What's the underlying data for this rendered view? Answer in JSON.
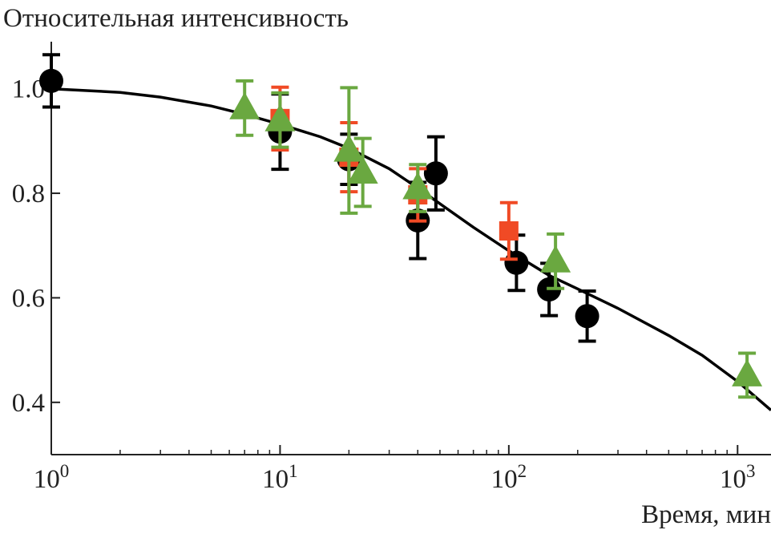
{
  "chart_data": {
    "type": "scatter",
    "ylabel": "Относительная интенсивность",
    "xlabel": "Время, мин",
    "x_scale": "log",
    "xlim": [
      1,
      1400
    ],
    "ylim": [
      0.3,
      1.09
    ],
    "y_ticks": [
      {
        "value": 0.4,
        "label": "0.4"
      },
      {
        "value": 0.6,
        "label": "0.6"
      },
      {
        "value": 0.8,
        "label": "0.8"
      },
      {
        "value": 1.0,
        "label": "1.0"
      }
    ],
    "x_major_ticks": [
      {
        "value": 1,
        "base": "10",
        "exp": "0"
      },
      {
        "value": 10,
        "base": "10",
        "exp": "1"
      },
      {
        "value": 100,
        "base": "10",
        "exp": "2"
      },
      {
        "value": 1000,
        "base": "10",
        "exp": "3"
      }
    ],
    "grid": false,
    "series": [
      {
        "marker": "circle",
        "color": "#000000",
        "points": [
          {
            "x": 1,
            "y": 1.015,
            "err": 0.05
          },
          {
            "x": 10,
            "y": 0.918,
            "err": 0.072
          },
          {
            "x": 20,
            "y": 0.865,
            "err": 0.048
          },
          {
            "x": 40,
            "y": 0.748,
            "err": 0.073
          },
          {
            "x": 48,
            "y": 0.838,
            "err": 0.07
          },
          {
            "x": 108,
            "y": 0.667,
            "err": 0.053
          },
          {
            "x": 150,
            "y": 0.616,
            "err": 0.05
          },
          {
            "x": 220,
            "y": 0.565,
            "err": 0.048
          }
        ]
      },
      {
        "marker": "square",
        "color": "#f04a25",
        "points": [
          {
            "x": 10,
            "y": 0.943,
            "err": 0.06
          },
          {
            "x": 20,
            "y": 0.869,
            "err": 0.066
          },
          {
            "x": 40,
            "y": 0.797,
            "err": 0.05
          },
          {
            "x": 100,
            "y": 0.728,
            "err": 0.054
          }
        ]
      },
      {
        "marker": "triangle",
        "color": "#6aa840",
        "points": [
          {
            "x": 7,
            "y": 0.963,
            "err": 0.052
          },
          {
            "x": 10,
            "y": 0.94,
            "err": 0.052
          },
          {
            "x": 20,
            "y": 0.882,
            "err": 0.12
          },
          {
            "x": 23,
            "y": 0.84,
            "err": 0.065
          },
          {
            "x": 40,
            "y": 0.81,
            "err": 0.045
          },
          {
            "x": 160,
            "y": 0.67,
            "err": 0.052
          },
          {
            "x": 1100,
            "y": 0.452,
            "err": 0.042
          }
        ]
      }
    ],
    "fit_curve": {
      "type": "line",
      "color": "#000000",
      "points": [
        {
          "x": 1,
          "y": 1.0
        },
        {
          "x": 2,
          "y": 0.993
        },
        {
          "x": 3,
          "y": 0.984
        },
        {
          "x": 5,
          "y": 0.967
        },
        {
          "x": 7,
          "y": 0.951
        },
        {
          "x": 10,
          "y": 0.932
        },
        {
          "x": 15,
          "y": 0.908
        },
        {
          "x": 20,
          "y": 0.886
        },
        {
          "x": 30,
          "y": 0.847
        },
        {
          "x": 40,
          "y": 0.81
        },
        {
          "x": 50,
          "y": 0.78
        },
        {
          "x": 70,
          "y": 0.735
        },
        {
          "x": 100,
          "y": 0.69
        },
        {
          "x": 150,
          "y": 0.643
        },
        {
          "x": 200,
          "y": 0.617
        },
        {
          "x": 300,
          "y": 0.58
        },
        {
          "x": 500,
          "y": 0.528
        },
        {
          "x": 700,
          "y": 0.49
        },
        {
          "x": 1000,
          "y": 0.44
        },
        {
          "x": 1400,
          "y": 0.385
        }
      ]
    }
  }
}
